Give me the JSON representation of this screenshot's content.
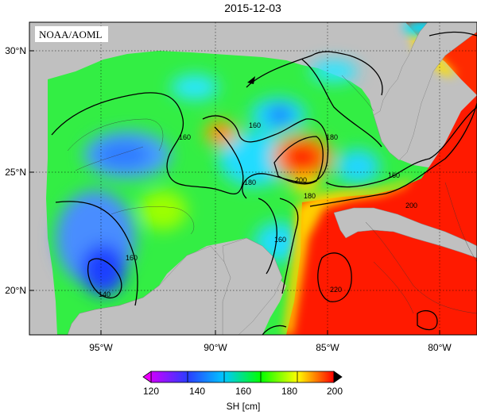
{
  "title": "2015-12-03",
  "credit": "NOAA/AOML",
  "axes": {
    "lat_ticks": [
      "30°N",
      "25°N",
      "20°N"
    ],
    "lon_ticks": [
      "95°W",
      "90°W",
      "85°W",
      "80°W"
    ]
  },
  "contour_labels": [
    "160",
    "160",
    "180",
    "180",
    "200",
    "160",
    "180",
    "160",
    "160",
    "140",
    "200",
    "220"
  ],
  "colorbar": {
    "ticks": [
      "120",
      "140",
      "160",
      "180",
      "200"
    ],
    "label": "SH [cm]",
    "colors": [
      "#cc00ff",
      "#2a3cff",
      "#00c8ff",
      "#00ff00",
      "#ffff00",
      "#ff0000"
    ]
  },
  "colors": {
    "land": "#c0c0c0",
    "ocean_base": "#33ee44",
    "warm_core": "#ff1a00",
    "low_sh": "#1e4aff"
  }
}
